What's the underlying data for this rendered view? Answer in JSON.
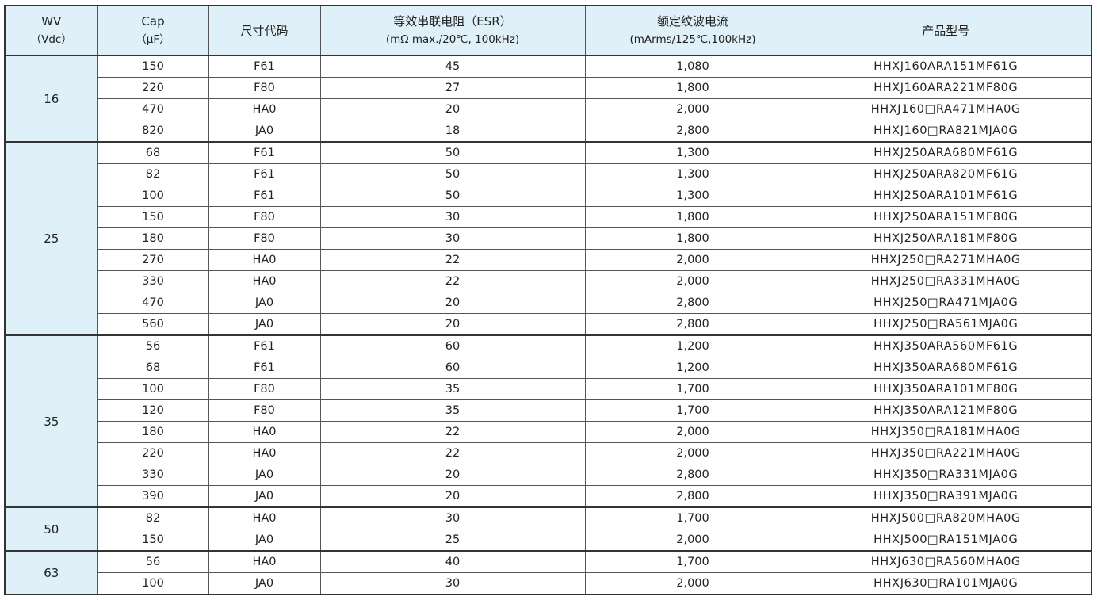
{
  "header": {
    "wv": "WV",
    "wv_unit": "（Vdc）",
    "cap": "Cap",
    "cap_unit": "（μF）",
    "size": "尺寸代码",
    "esr": "等效串联电阻（ESR）",
    "esr_unit": "(mΩ max./20℃, 100kHz)",
    "ripple": "额定纹波电流",
    "ripple_unit": "(mArms/125℃,100kHz)",
    "part": "产品型号"
  },
  "groups": [
    {
      "wv": "16",
      "rows": [
        [
          "150",
          "F61",
          "45",
          "1,080",
          "HHXJ160ARA151MF61G"
        ],
        [
          "220",
          "F80",
          "27",
          "1,800",
          "HHXJ160ARA221MF80G"
        ],
        [
          "470",
          "HA0",
          "20",
          "2,000",
          "HHXJ160□RA471MHA0G"
        ],
        [
          "820",
          "JA0",
          "18",
          "2,800",
          "HHXJ160□RA821MJA0G"
        ]
      ]
    },
    {
      "wv": "25",
      "rows": [
        [
          "68",
          "F61",
          "50",
          "1,300",
          "HHXJ250ARA680MF61G"
        ],
        [
          "82",
          "F61",
          "50",
          "1,300",
          "HHXJ250ARA820MF61G"
        ],
        [
          "100",
          "F61",
          "50",
          "1,300",
          "HHXJ250ARA101MF61G"
        ],
        [
          "150",
          "F80",
          "30",
          "1,800",
          "HHXJ250ARA151MF80G"
        ],
        [
          "180",
          "F80",
          "30",
          "1,800",
          "HHXJ250ARA181MF80G"
        ],
        [
          "270",
          "HA0",
          "22",
          "2,000",
          "HHXJ250□RA271MHA0G"
        ],
        [
          "330",
          "HA0",
          "22",
          "2,000",
          "HHXJ250□RA331MHA0G"
        ],
        [
          "470",
          "JA0",
          "20",
          "2,800",
          "HHXJ250□RA471MJA0G"
        ],
        [
          "560",
          "JA0",
          "20",
          "2,800",
          "HHXJ250□RA561MJA0G"
        ]
      ]
    },
    {
      "wv": "35",
      "rows": [
        [
          "56",
          "F61",
          "60",
          "1,200",
          "HHXJ350ARA560MF61G"
        ],
        [
          "68",
          "F61",
          "60",
          "1,200",
          "HHXJ350ARA680MF61G"
        ],
        [
          "100",
          "F80",
          "35",
          "1,700",
          "HHXJ350ARA101MF80G"
        ],
        [
          "120",
          "F80",
          "35",
          "1,700",
          "HHXJ350ARA121MF80G"
        ],
        [
          "180",
          "HA0",
          "22",
          "2,000",
          "HHXJ350□RA181MHA0G"
        ],
        [
          "220",
          "HA0",
          "22",
          "2,000",
          "HHXJ350□RA221MHA0G"
        ],
        [
          "330",
          "JA0",
          "20",
          "2,800",
          "HHXJ350□RA331MJA0G"
        ],
        [
          "390",
          "JA0",
          "20",
          "2,800",
          "HHXJ350□RA391MJA0G"
        ]
      ]
    },
    {
      "wv": "50",
      "rows": [
        [
          "82",
          "HA0",
          "30",
          "1,700",
          "HHXJ500□RA820MHA0G"
        ],
        [
          "150",
          "JA0",
          "25",
          "2,000",
          "HHXJ500□RA151MJA0G"
        ]
      ]
    },
    {
      "wv": "63",
      "rows": [
        [
          "56",
          "HA0",
          "40",
          "1,700",
          "HHXJ630□RA560MHA0G"
        ],
        [
          "100",
          "JA0",
          "30",
          "2,000",
          "HHXJ630□RA101MJA0G"
        ]
      ]
    }
  ]
}
